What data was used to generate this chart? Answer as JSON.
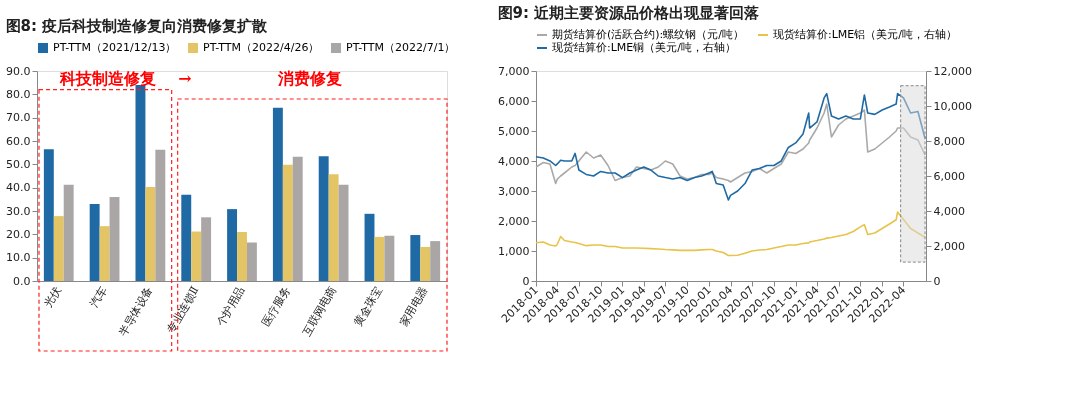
{
  "chart_data": [
    {
      "type": "bar",
      "title": "图8:  疫后科技制造修复向消费修复扩散",
      "categories": [
        "光伏",
        "汽车",
        "半导体设备",
        "专业连锁Ⅱ",
        "个护用品",
        "医疗服务",
        "互联网电商",
        "黄金珠宝",
        "家用电器"
      ],
      "series": [
        {
          "name": "PT-TTM（2021/12/13）",
          "color": "#1f6aa5",
          "values": [
            56.5,
            33.0,
            84.0,
            37.0,
            30.8,
            74.3,
            53.5,
            28.8,
            19.7
          ]
        },
        {
          "name": "PT-TTM（2022/4/26）",
          "color": "#e3c565",
          "values": [
            27.8,
            23.5,
            40.3,
            21.2,
            21.0,
            49.8,
            45.7,
            18.9,
            14.6
          ]
        },
        {
          "name": "PT-TTM（2022/7/1）",
          "color": "#aaa6a6",
          "values": [
            41.3,
            36.0,
            56.3,
            27.3,
            16.5,
            53.2,
            41.3,
            19.4,
            17.1
          ]
        }
      ],
      "ylim": [
        0,
        90
      ],
      "yticks": [
        {
          "value": 0,
          "label": "0.0"
        },
        {
          "value": 10,
          "label": "10.0"
        },
        {
          "value": 20,
          "label": "20.0"
        },
        {
          "value": 30,
          "label": "30.0"
        },
        {
          "value": 40,
          "label": "40.0"
        },
        {
          "value": 50,
          "label": "50.0"
        },
        {
          "value": 60,
          "label": "60.0"
        },
        {
          "value": 70,
          "label": "70.0"
        },
        {
          "value": 80,
          "label": "80.0"
        },
        {
          "value": 90,
          "label": "90.0"
        }
      ],
      "annotations": [
        "科技制造修复",
        "→",
        "消费修复"
      ],
      "legend": "top",
      "grid": false
    },
    {
      "type": "line",
      "title": "图9:  近期主要资源品价格出现显著回落",
      "x": [
        "2018-01",
        "2018-02",
        "2018-03",
        "2018-03-25",
        "2018-04",
        "2018-04-15",
        "2018-05",
        "2018-06",
        "2018-06-15",
        "2018-07",
        "2018-08",
        "2018-09",
        "2018-10",
        "2018-11",
        "2018-12",
        "2019-01",
        "2019-02",
        "2019-03",
        "2019-04",
        "2019-05",
        "2019-06",
        "2019-07",
        "2019-08",
        "2019-09",
        "2019-10",
        "2019-11",
        "2019-12",
        "2020-01",
        "2020-01-15",
        "2020-02",
        "2020-03",
        "2020-03-23",
        "2020-04",
        "2020-05",
        "2020-06",
        "2020-07",
        "2020-08",
        "2020-09",
        "2020-10",
        "2020-11",
        "2020-12",
        "2021-01",
        "2021-02",
        "2021-02-25",
        "2021-03",
        "2021-04",
        "2021-05",
        "2021-05-12",
        "2021-06",
        "2021-07",
        "2021-08",
        "2021-09",
        "2021-10",
        "2021-10-18",
        "2021-11",
        "2021-12",
        "2022-01",
        "2022-02",
        "2022-03",
        "2022-03-07",
        "2022-04",
        "2022-05",
        "2022-06",
        "2022-07-01"
      ],
      "series": [
        {
          "name": "期货结算价(活跃合约):螺纹钢（元/吨）",
          "color": "#a9a9a9",
          "values": [
            3800,
            3950,
            3900,
            3250,
            3400,
            3500,
            3600,
            3800,
            3850,
            4000,
            4300,
            4100,
            4200,
            3850,
            3350,
            3450,
            3500,
            3800,
            3750,
            3700,
            3800,
            4000,
            3900,
            3500,
            3400,
            3450,
            3550,
            3550,
            3600,
            3450,
            3400,
            3350,
            3300,
            3450,
            3600,
            3650,
            3750,
            3600,
            3750,
            3900,
            4300,
            4250,
            4400,
            4600,
            4700,
            5100,
            5600,
            5900,
            4800,
            5200,
            5400,
            5500,
            5600,
            5700,
            4300,
            4400,
            4600,
            4800,
            5000,
            5100,
            5100,
            4800,
            4700,
            4200
          ]
        },
        {
          "name": "现货结算价:LME铝（美元/吨，右轴）",
          "color": "#e8c34a",
          "axis": "y2",
          "values": [
            2190,
            2230,
            2060,
            2000,
            2100,
            2540,
            2310,
            2230,
            2200,
            2140,
            2020,
            2060,
            2060,
            1970,
            1970,
            1890,
            1890,
            1890,
            1870,
            1850,
            1830,
            1800,
            1780,
            1750,
            1750,
            1750,
            1780,
            1800,
            1800,
            1710,
            1630,
            1460,
            1460,
            1470,
            1590,
            1710,
            1770,
            1800,
            1890,
            1970,
            2060,
            2060,
            2140,
            2180,
            2230,
            2310,
            2400,
            2450,
            2490,
            2570,
            2660,
            2830,
            3090,
            3220,
            2660,
            2740,
            3000,
            3260,
            3500,
            3940,
            3510,
            3000,
            2740,
            2490
          ]
        },
        {
          "name": "现货结算价:LME铜（美元/吨，右轴）",
          "color": "#1f6aa5",
          "axis": "y2",
          "values": [
            7100,
            7030,
            6860,
            6600,
            6690,
            6900,
            6860,
            6860,
            7290,
            6340,
            6090,
            6000,
            6260,
            6170,
            6170,
            5910,
            6170,
            6340,
            6510,
            6340,
            6000,
            5910,
            5830,
            5910,
            5740,
            5910,
            6000,
            6170,
            6260,
            5570,
            5490,
            4630,
            4890,
            5140,
            5570,
            6340,
            6430,
            6600,
            6600,
            6860,
            7630,
            7890,
            8400,
            9600,
            8740,
            9090,
            10460,
            10710,
            9430,
            9260,
            9430,
            9260,
            9260,
            10630,
            9600,
            9520,
            9770,
            9940,
            10110,
            10710,
            10460,
            9600,
            9690,
            8140
          ]
        }
      ],
      "xlim": [
        "2018-01",
        "2022-07-05"
      ],
      "xticks": [
        "2018-01",
        "2018-04",
        "2018-07",
        "2018-10",
        "2019-01",
        "2019-04",
        "2019-07",
        "2019-10",
        "2020-01",
        "2020-04",
        "2020-07",
        "2020-10",
        "2021-01",
        "2021-04",
        "2021-07",
        "2021-10",
        "2022-01",
        "2022-04"
      ],
      "ylim": [
        0,
        7000
      ],
      "yticks": [
        0,
        {
          "value": 1000,
          "label": "1,000"
        },
        {
          "value": 2000,
          "label": "2,000"
        },
        {
          "value": 3000,
          "label": "3,000"
        },
        {
          "value": 4000,
          "label": "4,000"
        },
        {
          "value": 5000,
          "label": "5,000"
        },
        {
          "value": 6000,
          "label": "6,000"
        },
        {
          "value": 7000,
          "label": "7,000"
        }
      ],
      "y2lim": [
        0,
        12000
      ],
      "y2ticks": [
        0,
        {
          "value": 2000,
          "label": "2,000"
        },
        {
          "value": 4000,
          "label": "4,000"
        },
        {
          "value": 6000,
          "label": "6,000"
        },
        {
          "value": 8000,
          "label": "8,000"
        },
        {
          "value": 10000,
          "label": "10,000"
        },
        {
          "value": 12000,
          "label": "12,000"
        }
      ],
      "bands": [
        {
          "axis": "x",
          "from": "2022-03-20",
          "to": "2022-07-01",
          "color": "#d9d9d9"
        }
      ],
      "legend": "top",
      "grid": false,
      "line_style": "solid",
      "marker": "none"
    }
  ]
}
